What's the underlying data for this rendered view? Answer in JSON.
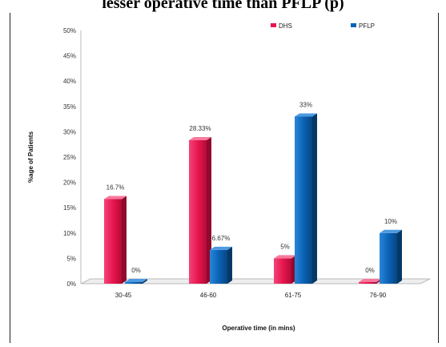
{
  "caption": "lesser operative time than PFLP (p)",
  "chart_data": {
    "type": "bar",
    "title": "",
    "xlabel": "Operative time (in mins)",
    "ylabel": "%age of Patients",
    "categories": [
      "30-45",
      "46-60",
      "61-75",
      "76-90"
    ],
    "ylim": [
      0,
      50
    ],
    "yticks": [
      "0%",
      "5%",
      "10%",
      "15%",
      "20%",
      "25%",
      "30%",
      "35%",
      "40%",
      "45%",
      "50%"
    ],
    "series": [
      {
        "name": "DHS",
        "color": "#e8174f",
        "values": [
          16.7,
          28.33,
          5,
          0
        ],
        "labels": [
          "16.7%",
          "28.33%",
          "5%",
          "0%"
        ]
      },
      {
        "name": "PFLP",
        "color": "#0b63b6",
        "values": [
          0,
          6.67,
          33,
          10
        ],
        "labels": [
          "0%",
          "6.67%",
          "33%",
          "10%"
        ]
      }
    ],
    "legend": "top-right",
    "grid": false
  }
}
